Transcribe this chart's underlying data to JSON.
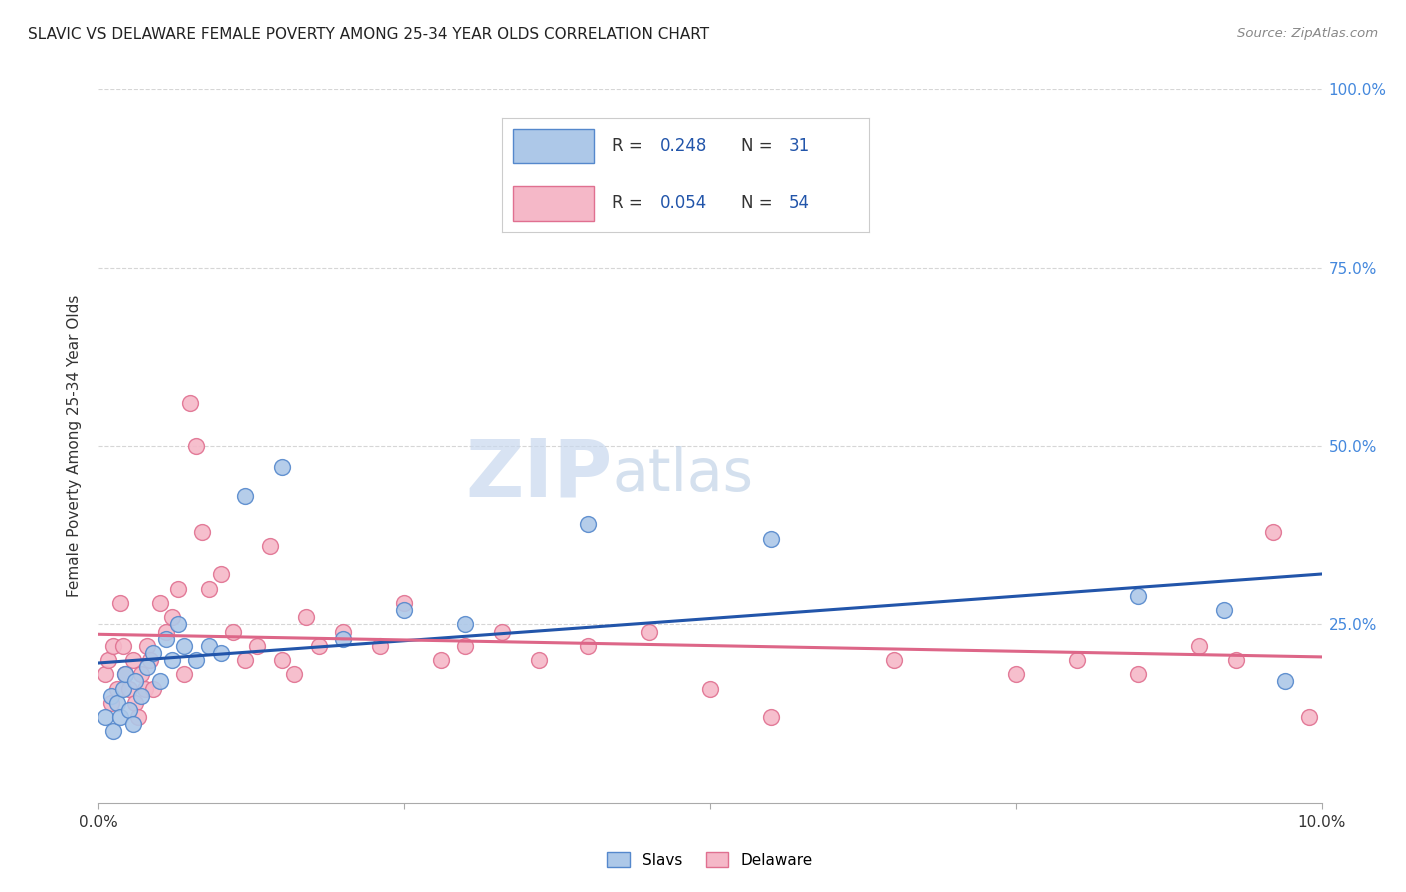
{
  "title": "SLAVIC VS DELAWARE FEMALE POVERTY AMONG 25-34 YEAR OLDS CORRELATION CHART",
  "source": "Source: ZipAtlas.com",
  "ylabel": "Female Poverty Among 25-34 Year Olds",
  "xlim": [
    0.0,
    10.0
  ],
  "ylim": [
    0.0,
    100.0
  ],
  "watermark_zip": "ZIP",
  "watermark_atlas": "atlas",
  "legend_slavs_R": "0.248",
  "legend_slavs_N": "31",
  "legend_delaware_R": "0.054",
  "legend_delaware_N": "54",
  "slavs_color": "#adc8e8",
  "delaware_color": "#f5b8c8",
  "slavs_edge_color": "#5588cc",
  "delaware_edge_color": "#e07090",
  "slavs_line_color": "#2255aa",
  "delaware_line_color": "#dd6688",
  "slavs_x": [
    0.05,
    0.1,
    0.12,
    0.15,
    0.18,
    0.2,
    0.22,
    0.25,
    0.28,
    0.3,
    0.35,
    0.4,
    0.45,
    0.5,
    0.55,
    0.6,
    0.65,
    0.7,
    0.8,
    0.9,
    1.0,
    1.2,
    1.5,
    2.0,
    2.5,
    3.0,
    4.0,
    5.5,
    8.5,
    9.2,
    9.7
  ],
  "slavs_y": [
    12,
    15,
    10,
    14,
    12,
    16,
    18,
    13,
    11,
    17,
    15,
    19,
    21,
    17,
    23,
    20,
    25,
    22,
    20,
    22,
    21,
    43,
    47,
    23,
    27,
    25,
    39,
    37,
    29,
    27,
    17
  ],
  "delaware_x": [
    0.05,
    0.08,
    0.1,
    0.12,
    0.15,
    0.18,
    0.2,
    0.22,
    0.25,
    0.28,
    0.3,
    0.32,
    0.35,
    0.38,
    0.4,
    0.42,
    0.45,
    0.5,
    0.55,
    0.6,
    0.65,
    0.7,
    0.75,
    0.8,
    0.85,
    0.9,
    1.0,
    1.1,
    1.2,
    1.3,
    1.4,
    1.5,
    1.6,
    1.7,
    1.8,
    2.0,
    2.3,
    2.5,
    2.8,
    3.0,
    3.3,
    3.6,
    4.0,
    4.5,
    5.0,
    5.5,
    6.5,
    7.5,
    8.0,
    8.5,
    9.0,
    9.3,
    9.6,
    9.9
  ],
  "delaware_y": [
    18,
    20,
    14,
    22,
    16,
    28,
    22,
    18,
    16,
    20,
    14,
    12,
    18,
    16,
    22,
    20,
    16,
    28,
    24,
    26,
    30,
    18,
    56,
    50,
    38,
    30,
    32,
    24,
    20,
    22,
    36,
    20,
    18,
    26,
    22,
    24,
    22,
    28,
    20,
    22,
    24,
    20,
    22,
    24,
    16,
    12,
    20,
    18,
    20,
    18,
    22,
    20,
    38,
    12
  ],
  "background_color": "#ffffff",
  "grid_color": "#cccccc"
}
